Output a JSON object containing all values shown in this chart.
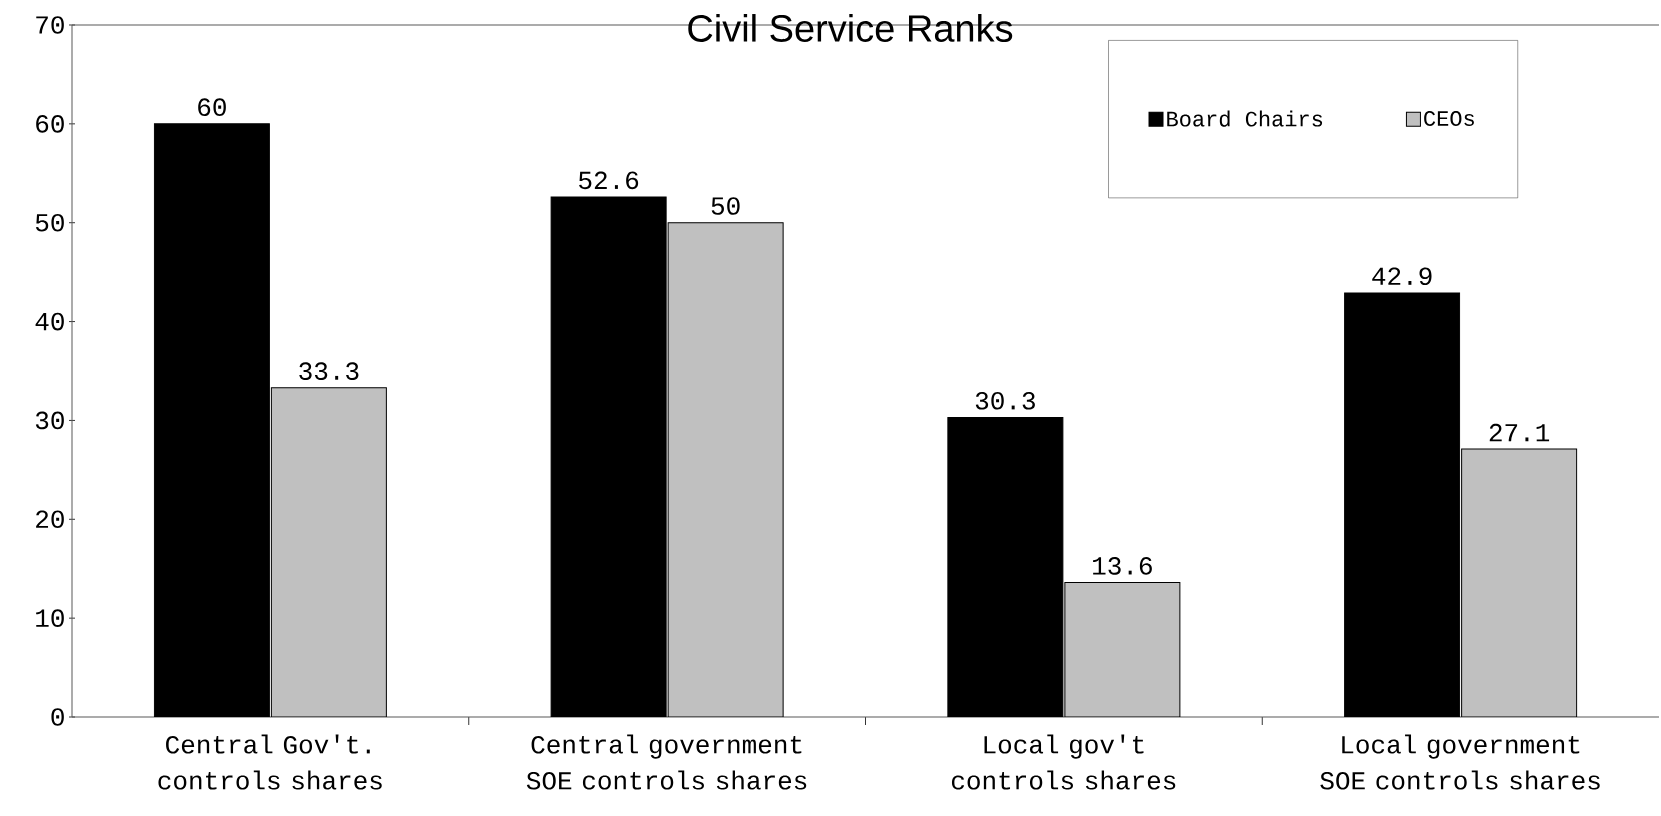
{
  "chart_data": {
    "type": "bar",
    "title": "Civil Service Ranks",
    "categories": [
      "Central Gov't. controls shares",
      "Central government SOE controls shares",
      "Local gov't controls shares",
      "Local government SOE controls shares"
    ],
    "series": [
      {
        "name": "Board Chairs",
        "color": "#000000",
        "values": [
          60,
          52.6,
          30.3,
          42.9
        ]
      },
      {
        "name": "CEOs",
        "color": "#c0c0c0",
        "values": [
          33.3,
          50,
          13.6,
          27.1
        ]
      }
    ],
    "ylim": [
      0,
      70
    ],
    "yticks": [
      0,
      10,
      20,
      30,
      40,
      50,
      60,
      70
    ],
    "data_labels": true,
    "legend": "top right",
    "grid": false
  }
}
